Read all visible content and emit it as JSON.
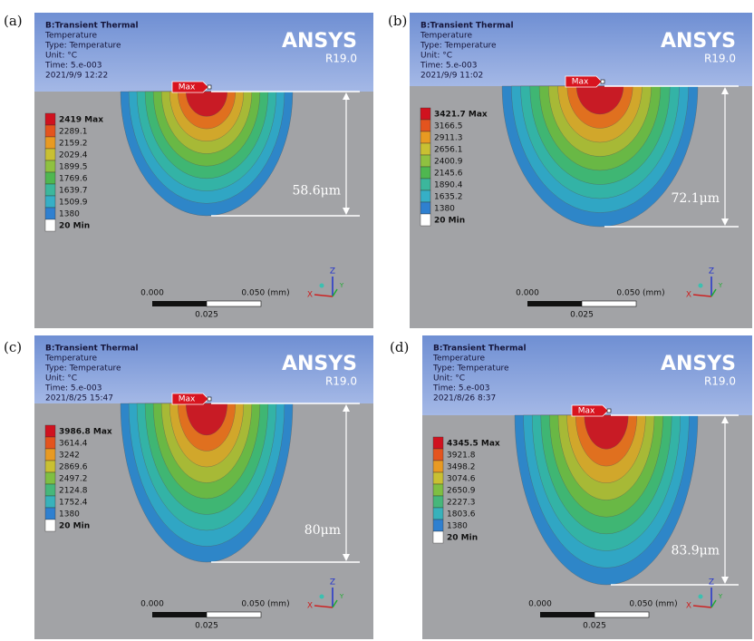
{
  "panels": [
    {
      "label": "(a)",
      "title": "B:Transient Thermal",
      "lines": [
        "Temperature",
        "Type: Temperature",
        "Unit: °C",
        "Time: 5.e-003",
        "2021/9/9 12:22"
      ],
      "brand": "ANSYS",
      "version": "R19.0",
      "legend": [
        "2419 Max",
        "2289.1",
        "2159.2",
        "2029.4",
        "1899.5",
        "1769.6",
        "1639.7",
        "1509.9",
        "1380",
        "20 Min"
      ],
      "marker": "Max",
      "depth": "58.6μm",
      "scale": {
        "left": "0.000",
        "right": "0.050 (mm)",
        "mid": "0.025"
      },
      "axes": {
        "z": "Z",
        "x": "X",
        "y": "Y"
      }
    },
    {
      "label": "(b)",
      "title": "B:Transient Thermal",
      "lines": [
        "Temperature",
        "Type: Temperature",
        "Unit: °C",
        "Time: 5.e-003",
        "2021/9/9 11:02"
      ],
      "brand": "ANSYS",
      "version": "R19.0",
      "legend": [
        "3421.7 Max",
        "3166.5",
        "2911.3",
        "2656.1",
        "2400.9",
        "2145.6",
        "1890.4",
        "1635.2",
        "1380",
        "20 Min"
      ],
      "marker": "Max",
      "depth": "72.1μm",
      "scale": {
        "left": "0.000",
        "right": "0.050 (mm)",
        "mid": "0.025"
      },
      "axes": {
        "z": "Z",
        "x": "X",
        "y": "Y"
      }
    },
    {
      "label": "(c)",
      "title": "B:Transient Thermal",
      "lines": [
        "Temperature",
        "Type: Temperature",
        "Unit: °C",
        "Time: 5.e-003",
        "2021/8/25 15:47"
      ],
      "brand": "ANSYS",
      "version": "R19.0",
      "legend": [
        "3986.8 Max",
        "3614.4",
        "3242",
        "2869.6",
        "2497.2",
        "2124.8",
        "1752.4",
        "1380",
        "20 Min"
      ],
      "marker": "Max",
      "depth": "80μm",
      "scale": {
        "left": "0.000",
        "right": "0.050 (mm)",
        "mid": "0.025"
      },
      "axes": {
        "z": "Z",
        "x": "X",
        "y": "Y"
      }
    },
    {
      "label": "(d)",
      "title": "B:Transient Thermal",
      "lines": [
        "Temperature",
        "Type: Temperature",
        "Unit: °C",
        "Time: 5.e-003",
        "2021/8/26 8:37"
      ],
      "brand": "ANSYS",
      "version": "R19.0",
      "legend": [
        "4345.5 Max",
        "3921.8",
        "3498.2",
        "3074.6",
        "2650.9",
        "2227.3",
        "1803.6",
        "1380",
        "20 Min"
      ],
      "marker": "Max",
      "depth": "83.9μm",
      "scale": {
        "left": "0.000",
        "right": "0.050 (mm)",
        "mid": "0.025"
      },
      "axes": {
        "z": "Z",
        "x": "X",
        "y": "Y"
      }
    }
  ]
}
